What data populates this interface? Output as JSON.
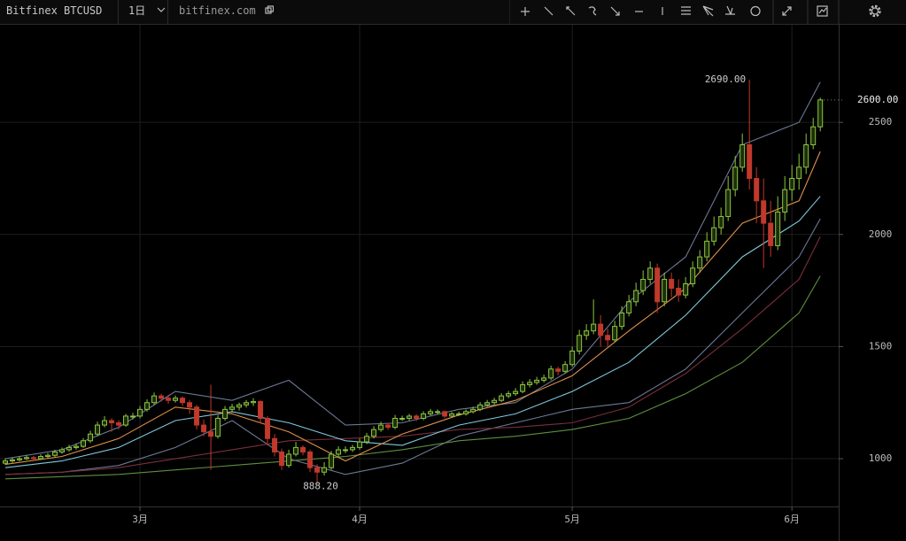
{
  "toolbar": {
    "symbol": "Bitfinex BTCUSD",
    "interval": "1日",
    "site": "bitfinex.com"
  },
  "chart_data": {
    "type": "candlestick",
    "xlim": [
      -0.75,
      117.6
    ],
    "ylim": [
      787,
      2935
    ],
    "xticks": [
      {
        "value": 19,
        "label": "3月"
      },
      {
        "value": 50,
        "label": "4月"
      },
      {
        "value": 80,
        "label": "5月"
      },
      {
        "value": 111,
        "label": "6月"
      }
    ],
    "yticks": [
      1000,
      1500,
      2000,
      2500
    ],
    "grid": true,
    "up_color": "#8cc63f",
    "down_color": "#c0392b",
    "candles": [
      [
        980,
        1002,
        972,
        990
      ],
      [
        990,
        1005,
        982,
        995
      ],
      [
        995,
        1010,
        988,
        1000
      ],
      [
        1000,
        1015,
        994,
        1005
      ],
      [
        1005,
        1012,
        992,
        1000
      ],
      [
        1000,
        1020,
        995,
        1010
      ],
      [
        1010,
        1025,
        1002,
        1015
      ],
      [
        1015,
        1040,
        1008,
        1030
      ],
      [
        1030,
        1050,
        1022,
        1040
      ],
      [
        1040,
        1062,
        1032,
        1050
      ],
      [
        1050,
        1068,
        1040,
        1055
      ],
      [
        1055,
        1092,
        1048,
        1080
      ],
      [
        1080,
        1125,
        1070,
        1110
      ],
      [
        1110,
        1165,
        1100,
        1150
      ],
      [
        1150,
        1190,
        1140,
        1170
      ],
      [
        1170,
        1180,
        1120,
        1160
      ],
      [
        1160,
        1172,
        1130,
        1150
      ],
      [
        1150,
        1200,
        1142,
        1190
      ],
      [
        1190,
        1205,
        1175,
        1190
      ],
      [
        1190,
        1235,
        1180,
        1220
      ],
      [
        1220,
        1265,
        1210,
        1250
      ],
      [
        1250,
        1295,
        1240,
        1280
      ],
      [
        1280,
        1290,
        1255,
        1270
      ],
      [
        1270,
        1285,
        1245,
        1260
      ],
      [
        1260,
        1282,
        1250,
        1270
      ],
      [
        1270,
        1278,
        1235,
        1250
      ],
      [
        1250,
        1262,
        1200,
        1230
      ],
      [
        1230,
        1240,
        1130,
        1150
      ],
      [
        1150,
        1175,
        1100,
        1120
      ],
      [
        1120,
        1330,
        950,
        1100
      ],
      [
        1100,
        1195,
        1090,
        1180
      ],
      [
        1180,
        1235,
        1170,
        1220
      ],
      [
        1220,
        1245,
        1205,
        1230
      ],
      [
        1230,
        1250,
        1215,
        1240
      ],
      [
        1240,
        1262,
        1228,
        1250
      ],
      [
        1250,
        1270,
        1235,
        1255
      ],
      [
        1255,
        1260,
        1160,
        1180
      ],
      [
        1180,
        1190,
        1060,
        1090
      ],
      [
        1090,
        1110,
        1010,
        1030
      ],
      [
        1030,
        1045,
        950,
        970
      ],
      [
        970,
        1040,
        960,
        1020
      ],
      [
        1020,
        1075,
        1010,
        1050
      ],
      [
        1050,
        1060,
        1015,
        1030
      ],
      [
        1030,
        1040,
        940,
        960
      ],
      [
        960,
        975,
        888.2,
        940
      ],
      [
        940,
        985,
        925,
        960
      ],
      [
        960,
        1035,
        950,
        1020
      ],
      [
        1020,
        1055,
        1005,
        1040
      ],
      [
        1040,
        1055,
        1025,
        1040
      ],
      [
        1040,
        1062,
        1030,
        1050
      ],
      [
        1050,
        1090,
        1040,
        1075
      ],
      [
        1075,
        1115,
        1065,
        1100
      ],
      [
        1100,
        1145,
        1090,
        1130
      ],
      [
        1130,
        1165,
        1120,
        1150
      ],
      [
        1150,
        1160,
        1128,
        1140
      ],
      [
        1140,
        1195,
        1132,
        1180
      ],
      [
        1180,
        1192,
        1168,
        1180
      ],
      [
        1180,
        1200,
        1170,
        1190
      ],
      [
        1190,
        1198,
        1168,
        1180
      ],
      [
        1180,
        1212,
        1172,
        1200
      ],
      [
        1200,
        1222,
        1192,
        1210
      ],
      [
        1210,
        1220,
        1198,
        1210
      ],
      [
        1210,
        1215,
        1180,
        1190
      ],
      [
        1190,
        1208,
        1182,
        1200
      ],
      [
        1200,
        1210,
        1190,
        1200
      ],
      [
        1200,
        1220,
        1192,
        1210
      ],
      [
        1210,
        1232,
        1202,
        1220
      ],
      [
        1220,
        1252,
        1212,
        1240
      ],
      [
        1240,
        1262,
        1232,
        1250
      ],
      [
        1250,
        1272,
        1242,
        1260
      ],
      [
        1260,
        1292,
        1252,
        1280
      ],
      [
        1280,
        1302,
        1270,
        1290
      ],
      [
        1290,
        1315,
        1280,
        1300
      ],
      [
        1300,
        1345,
        1292,
        1330
      ],
      [
        1330,
        1355,
        1318,
        1340
      ],
      [
        1340,
        1365,
        1330,
        1350
      ],
      [
        1350,
        1375,
        1340,
        1360
      ],
      [
        1360,
        1415,
        1350,
        1400
      ],
      [
        1400,
        1410,
        1372,
        1390
      ],
      [
        1390,
        1435,
        1380,
        1420
      ],
      [
        1420,
        1500,
        1410,
        1480
      ],
      [
        1480,
        1575,
        1465,
        1550
      ],
      [
        1550,
        1600,
        1530,
        1570
      ],
      [
        1570,
        1710,
        1555,
        1600
      ],
      [
        1600,
        1640,
        1500,
        1550
      ],
      [
        1550,
        1580,
        1500,
        1530
      ],
      [
        1530,
        1615,
        1520,
        1590
      ],
      [
        1590,
        1680,
        1575,
        1650
      ],
      [
        1650,
        1730,
        1635,
        1700
      ],
      [
        1700,
        1785,
        1680,
        1750
      ],
      [
        1750,
        1840,
        1730,
        1800
      ],
      [
        1800,
        1880,
        1780,
        1850
      ],
      [
        1850,
        1870,
        1650,
        1700
      ],
      [
        1700,
        1830,
        1680,
        1800
      ],
      [
        1800,
        1830,
        1720,
        1760
      ],
      [
        1760,
        1800,
        1700,
        1730
      ],
      [
        1730,
        1810,
        1715,
        1780
      ],
      [
        1780,
        1880,
        1765,
        1850
      ],
      [
        1850,
        1930,
        1830,
        1900
      ],
      [
        1900,
        2010,
        1880,
        1970
      ],
      [
        1970,
        2080,
        1950,
        2030
      ],
      [
        2030,
        2120,
        2000,
        2080
      ],
      [
        2080,
        2260,
        2060,
        2200
      ],
      [
        2200,
        2350,
        2170,
        2300
      ],
      [
        2300,
        2450,
        2280,
        2400
      ],
      [
        2400,
        2690,
        2200,
        2250
      ],
      [
        2250,
        2300,
        2050,
        2150
      ],
      [
        2150,
        2250,
        1850,
        2050
      ],
      [
        2050,
        2150,
        1900,
        1950
      ],
      [
        1950,
        2170,
        1930,
        2100
      ],
      [
        2100,
        2260,
        2060,
        2200
      ],
      [
        2200,
        2310,
        2150,
        2250
      ],
      [
        2250,
        2360,
        2200,
        2300
      ],
      [
        2300,
        2450,
        2270,
        2400
      ],
      [
        2400,
        2520,
        2380,
        2480
      ],
      [
        2480,
        2610,
        2460,
        2600
      ]
    ],
    "line_x": [
      0,
      8,
      16,
      24,
      32,
      40,
      48,
      56,
      64,
      72,
      80,
      88,
      96,
      104,
      112,
      115
    ],
    "lines": [
      {
        "color": "#6b7894",
        "values": [
          1000,
          1040,
          1140,
          1300,
          1260,
          1350,
          1150,
          1160,
          1220,
          1250,
          1400,
          1700,
          1900,
          2400,
          2500,
          2680
        ]
      },
      {
        "color": "#6b7894",
        "values": [
          930,
          940,
          970,
          1050,
          1170,
          1000,
          930,
          980,
          1100,
          1160,
          1220,
          1250,
          1400,
          1650,
          1900,
          2070
        ]
      },
      {
        "color": "#7a2e3c",
        "values": [
          930,
          940,
          960,
          1000,
          1040,
          1080,
          1090,
          1100,
          1130,
          1140,
          1160,
          1230,
          1380,
          1580,
          1800,
          1990
        ]
      },
      {
        "color": "#5f8f3e",
        "values": [
          910,
          920,
          930,
          950,
          970,
          990,
          1010,
          1040,
          1080,
          1100,
          1130,
          1180,
          1290,
          1430,
          1650,
          1815
        ]
      },
      {
        "color": "#7ec8dc",
        "values": [
          960,
          990,
          1050,
          1170,
          1210,
          1160,
          1080,
          1060,
          1150,
          1200,
          1300,
          1430,
          1640,
          1900,
          2060,
          2170
        ]
      },
      {
        "color": "#e0904a",
        "values": [
          975,
          1010,
          1090,
          1230,
          1200,
          1120,
          990,
          1110,
          1195,
          1260,
          1370,
          1570,
          1760,
          2050,
          2150,
          2370
        ]
      }
    ],
    "annotations": [
      {
        "x": 105,
        "value": 2690,
        "label": "2690.00"
      },
      {
        "x": 44,
        "value": 888.2,
        "label": "888.20"
      }
    ],
    "last_price": {
      "value": 2600,
      "label": "2600.00"
    }
  }
}
